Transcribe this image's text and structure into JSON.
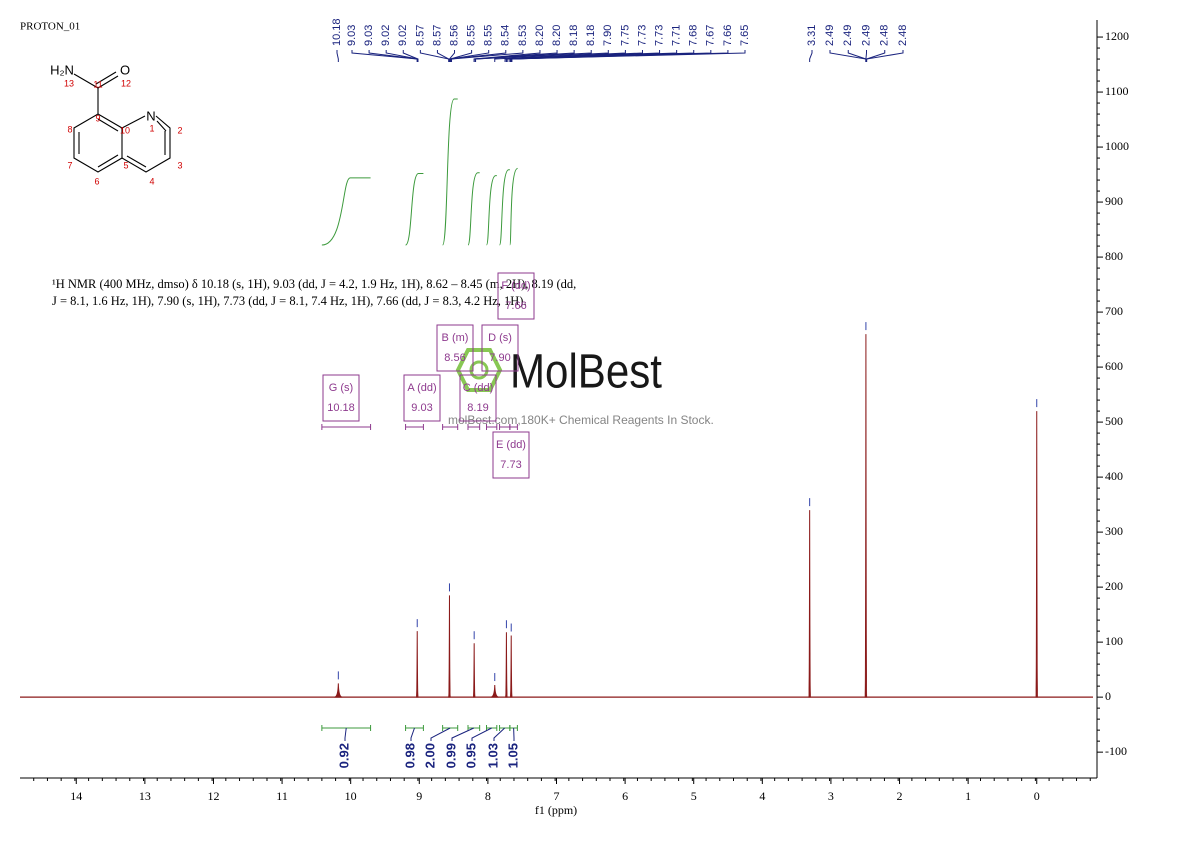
{
  "chart_data": {
    "type": "nmr",
    "title": "PROTON_01",
    "x_label": "f1 (ppm)",
    "xlim": [
      14.82,
      -0.82
    ],
    "xticks": [
      14,
      13,
      12,
      11,
      10,
      9,
      8,
      7,
      6,
      5,
      4,
      3,
      2,
      1,
      0
    ],
    "ylim": [
      -147,
      1231
    ],
    "yticks": [
      -100,
      0,
      100,
      200,
      300,
      400,
      500,
      600,
      700,
      800,
      900,
      1000,
      1100,
      1200
    ],
    "color": "#8b1a1a",
    "peaks": {
      "x": [
        10.18,
        9.03,
        8.56,
        8.2,
        7.9,
        7.73,
        7.66,
        3.31,
        2.49,
        0
      ],
      "values": [
        25,
        120,
        185,
        98,
        22,
        118,
        112,
        340,
        660,
        520
      ]
    },
    "peak_shift_labels": [
      "10.18",
      "9.03",
      "9.03",
      "9.02",
      "9.02",
      "8.57",
      "8.57",
      "8.56",
      "8.55",
      "8.55",
      "8.54",
      "8.53",
      "8.20",
      "8.20",
      "8.18",
      "8.18",
      "7.90",
      "7.75",
      "7.73",
      "7.73",
      "7.71",
      "7.68",
      "7.67",
      "7.66",
      "7.65",
      "3.31",
      "2.49",
      "2.49",
      "2.49",
      "2.48",
      "2.48"
    ],
    "integrals": {
      "values": [
        0.92,
        0.98,
        2,
        0.99,
        0.95,
        1.03,
        1.05
      ],
      "value_labels": [
        "0.92",
        "0.98",
        "2.00",
        "0.99",
        "0.95",
        "1.03",
        "1.05"
      ],
      "ranges": [
        [
          10.42,
          9.71
        ],
        [
          9.2,
          8.94
        ],
        [
          8.66,
          8.44
        ],
        [
          8.29,
          8.12
        ],
        [
          8.02,
          7.87
        ],
        [
          7.83,
          7.68
        ],
        [
          7.68,
          7.57
        ]
      ]
    },
    "multiplets": [
      {
        "label": "G (s)",
        "shift": "10.18"
      },
      {
        "label": "A (dd)",
        "shift": "9.03"
      },
      {
        "label": "B (m)",
        "shift": "8.56"
      },
      {
        "label": "C (dd)",
        "shift": "8.19"
      },
      {
        "label": "D (s)",
        "shift": "7.90"
      },
      {
        "label": "E (dd)",
        "shift": "7.73"
      },
      {
        "label": "F (dd)",
        "shift": "7.66"
      }
    ],
    "annotation": [
      "¹H NMR (400 MHz, dmso) δ 10.18 (s, 1H), 9.03 (dd, J = 4.2, 1.9 Hz, 1H), 8.62 – 8.45 (m, 2H), 8.19 (dd,",
      "J = 8.1, 1.6 Hz, 1H), 7.90 (s, 1H), 7.73 (dd, J = 8.1, 7.4 Hz, 1H), 7.66 (dd, J = 8.3, 4.2 Hz, 1H)."
    ],
    "watermark": {
      "brand": "MolBest",
      "tagline": "molBest.com,180K+ Chemical Reagents In Stock."
    },
    "structure": {
      "atoms": [
        "H₂N",
        "O",
        "N"
      ],
      "numbers": [
        "13",
        "11",
        "12",
        "9",
        "8",
        "10",
        "1",
        "2",
        "7",
        "5",
        "3",
        "6",
        "4"
      ]
    }
  }
}
